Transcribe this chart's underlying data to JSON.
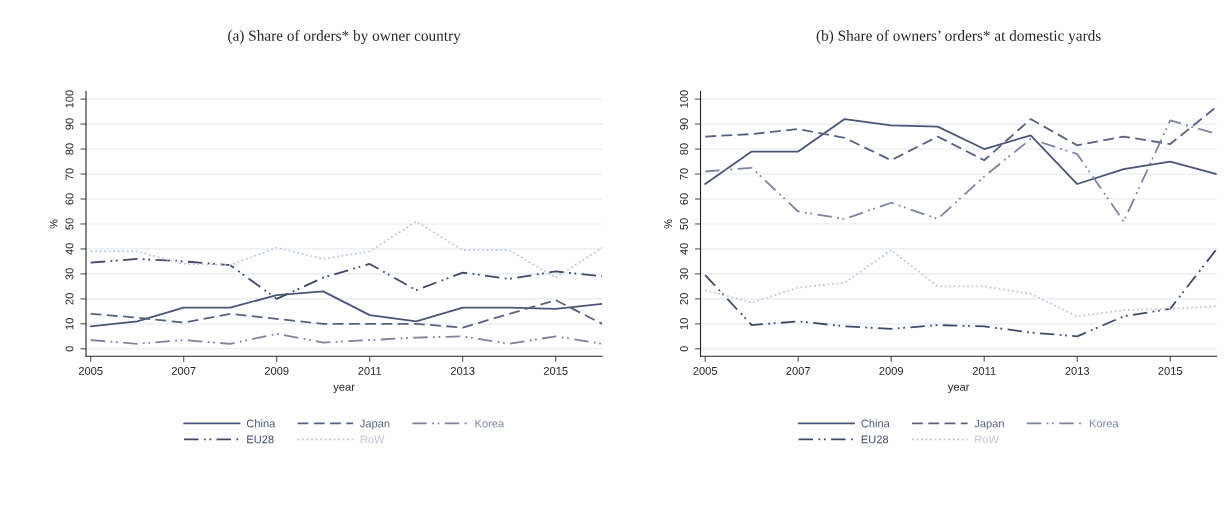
{
  "chart_data": [
    {
      "type": "line",
      "title": "(a) Share of orders* by owner country",
      "xlabel": "year",
      "ylabel": "%",
      "x": [
        2005,
        2006,
        2007,
        2008,
        2009,
        2010,
        2011,
        2012,
        2013,
        2014,
        2015,
        2016
      ],
      "xlim": [
        2004.9,
        2016
      ],
      "xticks": [
        2005,
        2007,
        2009,
        2011,
        2013,
        2015
      ],
      "ylim": [
        -3,
        103
      ],
      "yticks": [
        0,
        10,
        20,
        30,
        40,
        50,
        60,
        70,
        80,
        90,
        100
      ],
      "grid": "y",
      "legend": "bottom",
      "marker": "none",
      "series": [
        {
          "name": "China",
          "color": "#4a5677",
          "line_style": "solid",
          "values": [
            9,
            11,
            16.5,
            16.5,
            21.5,
            23,
            13.5,
            11,
            16.5,
            16.5,
            16,
            18
          ]
        },
        {
          "name": "Japan",
          "color": "#56627f",
          "line_style": "dashed",
          "values": [
            14,
            12.5,
            10.5,
            14,
            12,
            10,
            10,
            10,
            8.5,
            14,
            19.5,
            10
          ]
        },
        {
          "name": "Korea",
          "color": "#7c84a0",
          "line_style": "dashdot",
          "values": [
            3.5,
            2,
            3.5,
            2,
            6,
            2.5,
            3.5,
            4.5,
            5,
            2,
            5,
            2
          ]
        },
        {
          "name": "EU28",
          "color": "#3f4a6a",
          "line_style": "dashdot",
          "values": [
            34.5,
            36,
            35,
            33.5,
            20,
            28.5,
            34,
            23.5,
            30.5,
            28,
            31,
            29
          ]
        },
        {
          "name": "RoW",
          "color": "#c3c6d3",
          "line_style": "dotted",
          "values": [
            39,
            39,
            34,
            33.5,
            40.5,
            36,
            39,
            51,
            39.5,
            39.5,
            28.5,
            40.5
          ]
        }
      ]
    },
    {
      "type": "line",
      "title": "(b) Share of owners’ orders* at domestic yards",
      "xlabel": "year",
      "ylabel": "%",
      "x": [
        2005,
        2006,
        2007,
        2008,
        2009,
        2010,
        2011,
        2012,
        2013,
        2014,
        2015,
        2016
      ],
      "xlim": [
        2004.9,
        2016
      ],
      "xticks": [
        2005,
        2007,
        2009,
        2011,
        2013,
        2015
      ],
      "ylim": [
        -3,
        103
      ],
      "yticks": [
        0,
        10,
        20,
        30,
        40,
        50,
        60,
        70,
        80,
        90,
        100
      ],
      "grid": "y",
      "legend": "bottom",
      "marker": "none",
      "series": [
        {
          "name": "China",
          "color": "#4a5677",
          "line_style": "solid",
          "values": [
            66,
            79,
            79,
            92,
            89.5,
            89,
            80,
            85.5,
            66,
            72,
            75,
            70
          ]
        },
        {
          "name": "Japan",
          "color": "#56627f",
          "line_style": "dashed",
          "values": [
            85,
            86,
            88,
            84.5,
            75.5,
            85,
            75.5,
            92,
            81.5,
            85,
            82,
            97
          ]
        },
        {
          "name": "Korea",
          "color": "#7c84a0",
          "line_style": "dashdot",
          "values": [
            71,
            72.5,
            55,
            52,
            58.5,
            52,
            69,
            84,
            78,
            51,
            91.5,
            86
          ]
        },
        {
          "name": "EU28",
          "color": "#3f4a6a",
          "line_style": "dashdot",
          "values": [
            29.5,
            9.5,
            11,
            9,
            8,
            9.5,
            9,
            6.5,
            5,
            13,
            16,
            40
          ]
        },
        {
          "name": "RoW",
          "color": "#c3c6d3",
          "line_style": "dotted",
          "values": [
            23.5,
            18.5,
            24.5,
            26.5,
            39.5,
            25,
            25,
            22,
            13,
            15.5,
            16,
            17
          ]
        }
      ]
    }
  ]
}
